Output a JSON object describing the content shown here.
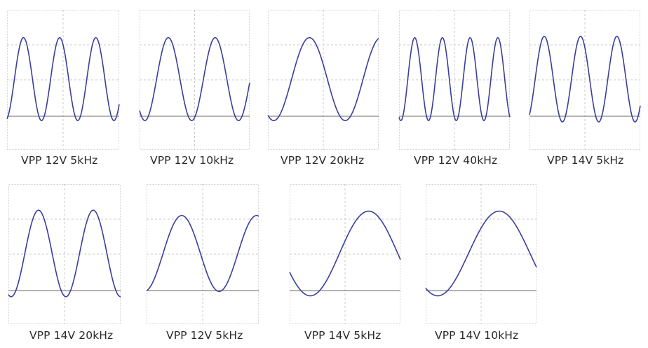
{
  "colors": {
    "trace": "#3a3f9c",
    "grid": "#c8c8c8",
    "frame": "#d2d2d2",
    "baseline": "#6a6a6a"
  },
  "panels": [
    {
      "caption": "VPP 12V 5kHz",
      "cycles": 3.1,
      "amplitude": 0.94,
      "phase": 5.0
    },
    {
      "caption": "VPP 12V 10kHz",
      "cycles": 2.35,
      "amplitude": 0.94,
      "phase": 4.0
    },
    {
      "caption": "VPP 12V 20kHz",
      "cycles": 1.55,
      "amplitude": 0.94,
      "phase": 4.2
    },
    {
      "caption": "VPP 12V 40kHz",
      "cycles": 4.0,
      "amplitude": 0.94,
      "phase": 4.3
    },
    {
      "caption": "VPP 14V 5kHz",
      "cycles": 3.05,
      "amplitude": 0.97,
      "phase": 5.3
    },
    {
      "caption": "VPP 14V 20kHz",
      "cycles": 2.05,
      "amplitude": 0.98,
      "phase": 4.4
    },
    {
      "caption": "VPP 12V 5kHz",
      "cycles": 1.5,
      "amplitude": 0.86,
      "phase": 4.9
    },
    {
      "caption": "VPP 14V 5kHz",
      "cycles": 0.95,
      "amplitude": 0.96,
      "phase": 3.6
    },
    {
      "caption": "VPP 14V 10kHz",
      "cycles": 0.9,
      "amplitude": 0.96,
      "phase": 4.1
    }
  ]
}
